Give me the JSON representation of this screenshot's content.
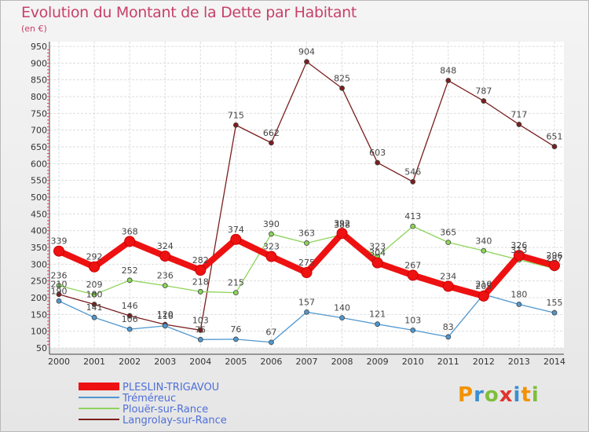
{
  "header": {
    "title": "Evolution du Montant de la Dette par Habitant",
    "unit": "(en €)"
  },
  "logo": {
    "text": "Proxiti",
    "letters": [
      "P",
      "r",
      "o",
      "x",
      "i",
      "t",
      "i"
    ]
  },
  "chart_data": {
    "type": "line",
    "title": "Evolution du Montant de la Dette par Habitant",
    "subtitle": "(en €)",
    "x": [
      "2000",
      "2001",
      "2002",
      "2003",
      "2004",
      "2005",
      "2006",
      "2007",
      "2008",
      "2009",
      "2010",
      "2011",
      "2012",
      "2013",
      "2014"
    ],
    "ylim": [
      50,
      950
    ],
    "yticks": [
      50,
      100,
      150,
      200,
      250,
      300,
      350,
      400,
      450,
      500,
      550,
      600,
      650,
      700,
      750,
      800,
      850,
      900,
      950
    ],
    "grid": true,
    "legend_position": "bottom-left",
    "series": [
      {
        "name": "PLESLIN-TRIGAVOU",
        "color": "#ee1111",
        "values": [
          339,
          292,
          368,
          324,
          282,
          374,
          323,
          275,
          392,
          304,
          267,
          234,
          205,
          326,
          296
        ]
      },
      {
        "name": "Tréméreuc",
        "color": "#4f97cf",
        "values": [
          190,
          141,
          106,
          116,
          75,
          76,
          67,
          157,
          140,
          121,
          103,
          83,
          210,
          180,
          155
        ]
      },
      {
        "name": "Plouër-sur-Rance",
        "color": "#8cd45a",
        "values": [
          236,
          209,
          252,
          236,
          218,
          215,
          390,
          363,
          388,
          323,
          413,
          365,
          340,
          313,
          287
        ]
      },
      {
        "name": "Langrolay-sur-Rance",
        "color": "#7a1e1e",
        "values": [
          210,
          180,
          146,
          120,
          103,
          715,
          662,
          904,
          825,
          603,
          546,
          848,
          787,
          717,
          651
        ]
      }
    ]
  }
}
